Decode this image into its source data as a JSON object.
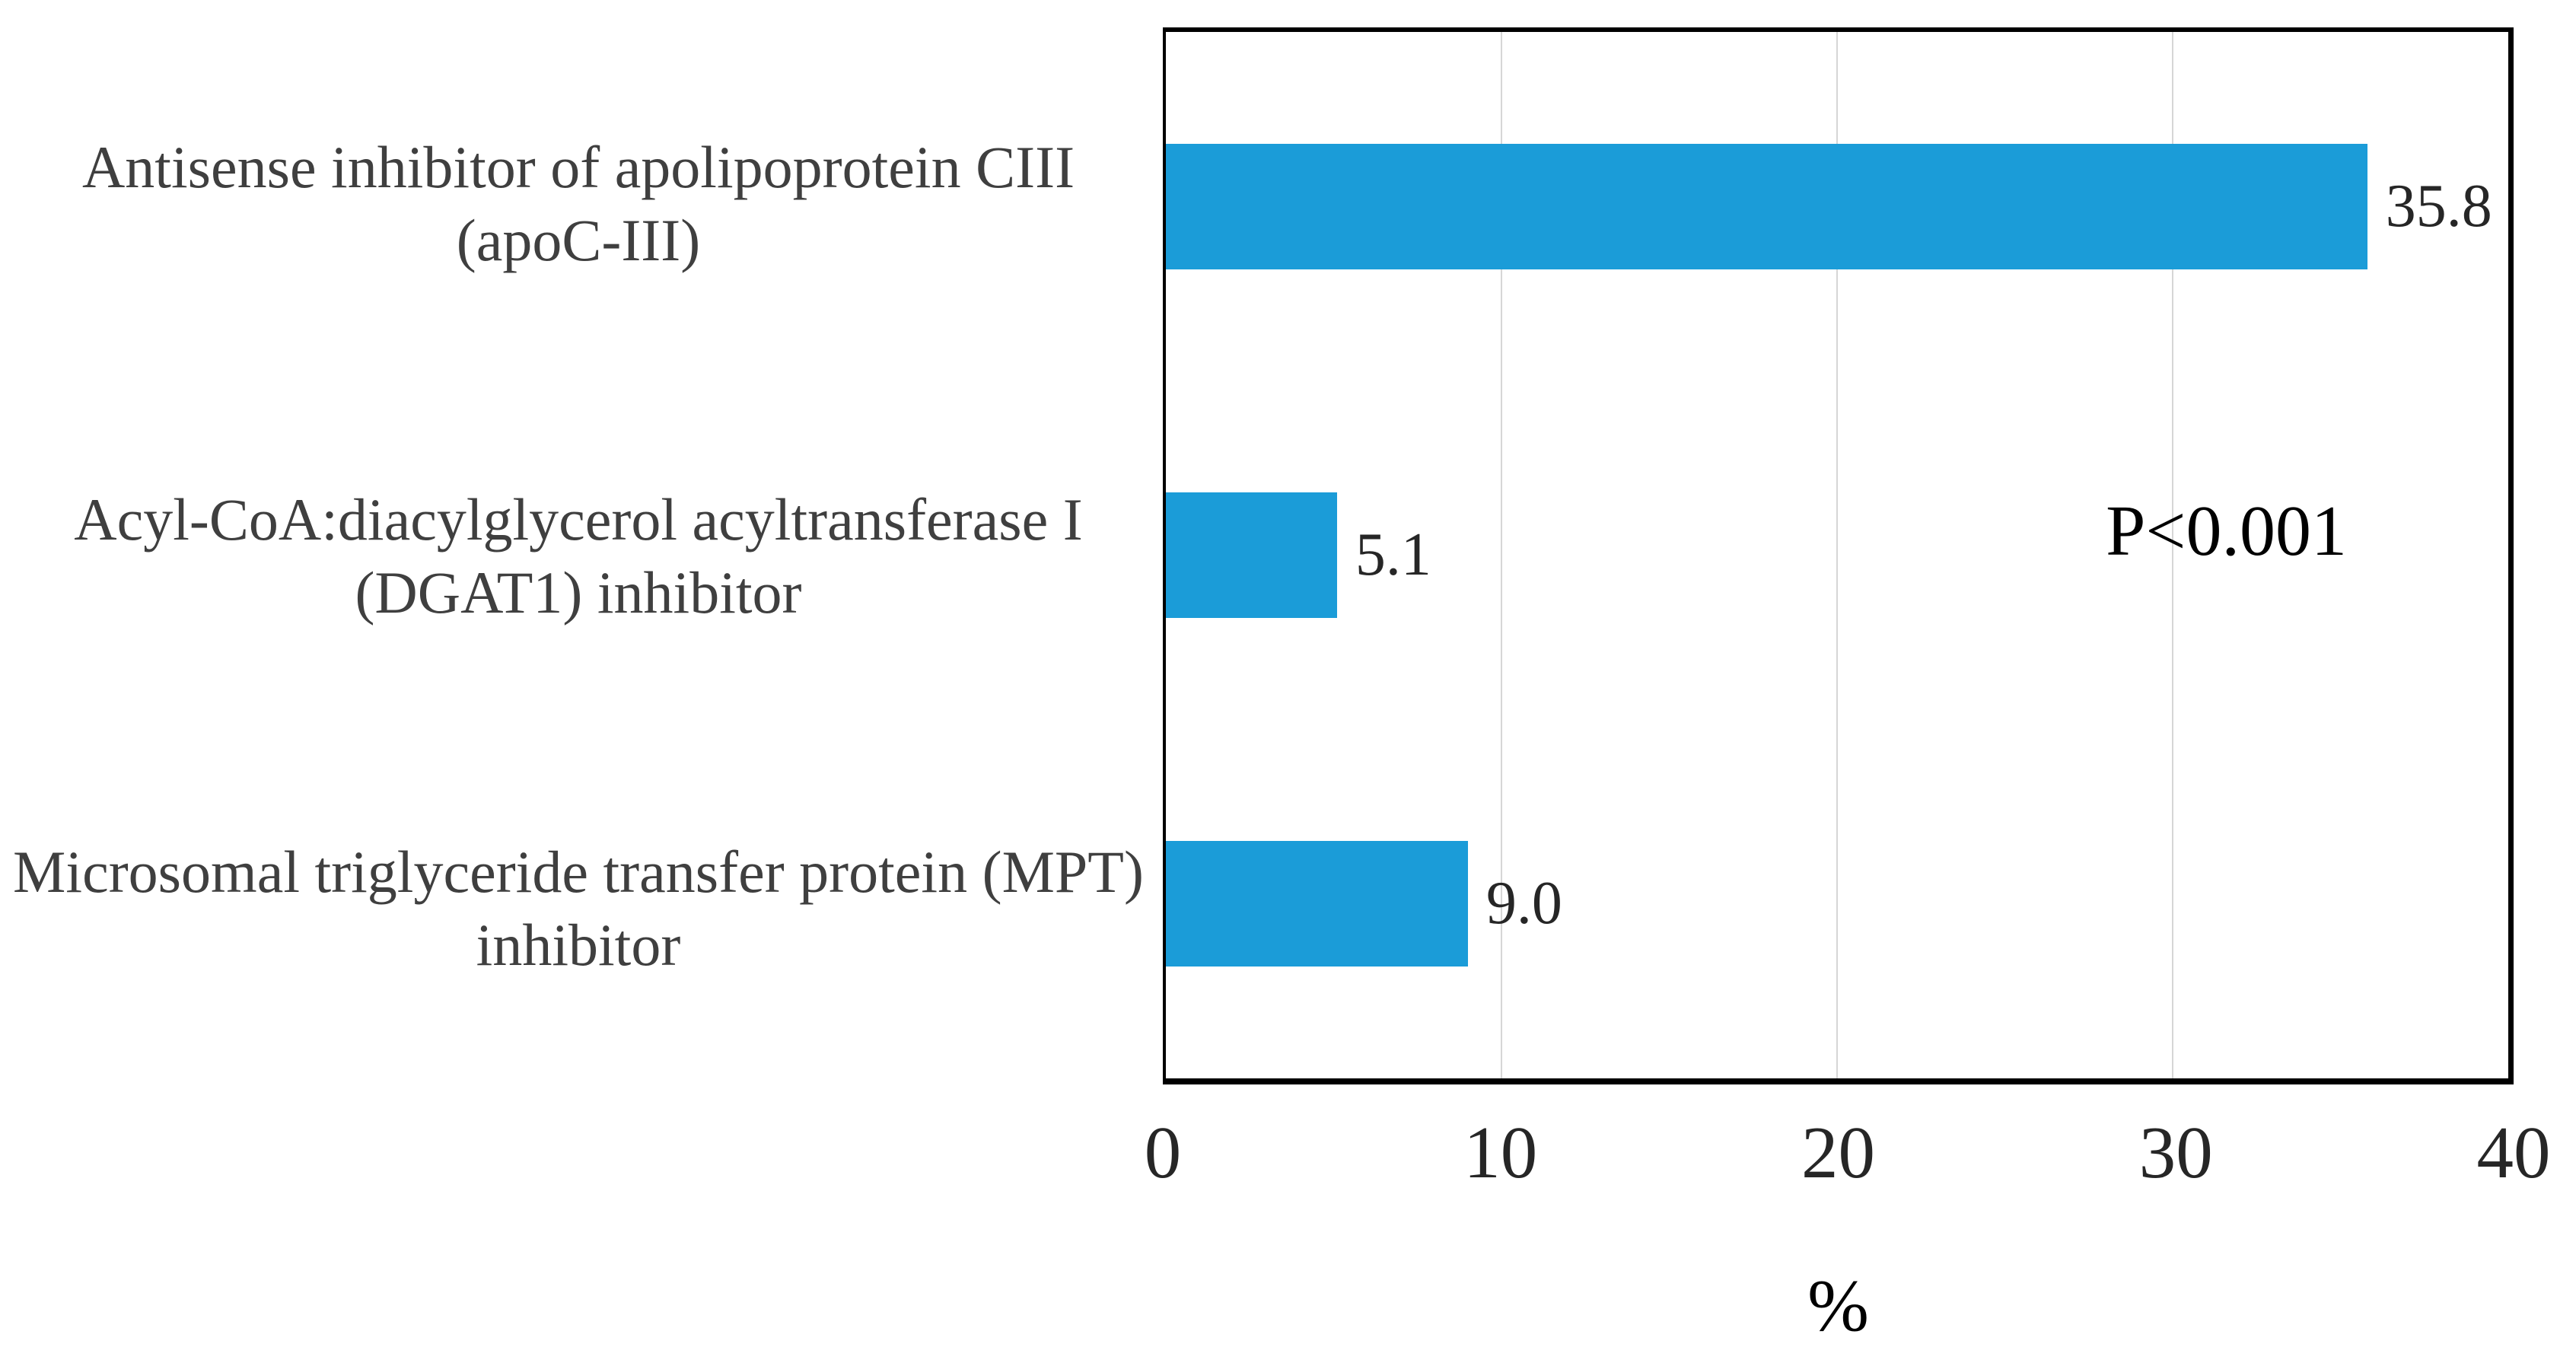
{
  "chart_data": {
    "type": "bar",
    "orientation": "horizontal",
    "title": "",
    "categories": [
      "Antisense inhibitor of apolipoprotein CIII (apoC-III)",
      "Acyl-CoA:diacylglycerol acyltransferase I (DGAT1) inhibitor",
      "Microsomal triglyceride transfer protein (MPT) inhibitor"
    ],
    "category_lines": [
      [
        "Antisense inhibitor of apolipoprotein CIII",
        "(apoC-III)"
      ],
      [
        "Acyl-CoA:diacylglycerol acyltransferase I",
        "(DGAT1) inhibitor"
      ],
      [
        "Microsomal triglyceride transfer protein (MPT)",
        "inhibitor"
      ]
    ],
    "values": [
      35.8,
      5.1,
      9.0
    ],
    "data_labels": [
      "35.8",
      "5.1",
      "9.0"
    ],
    "x_ticks": [
      0,
      10,
      20,
      30,
      40
    ],
    "xlim": [
      0,
      40
    ],
    "xlabel": "%",
    "ylabel": "",
    "annotation": "P<0.001",
    "legend": "none",
    "grid": "vertical gridlines at each x tick",
    "bar_color": "#1b9cd8",
    "gridline_color": "#d6d6d6",
    "axis_box_color": "#000000"
  }
}
